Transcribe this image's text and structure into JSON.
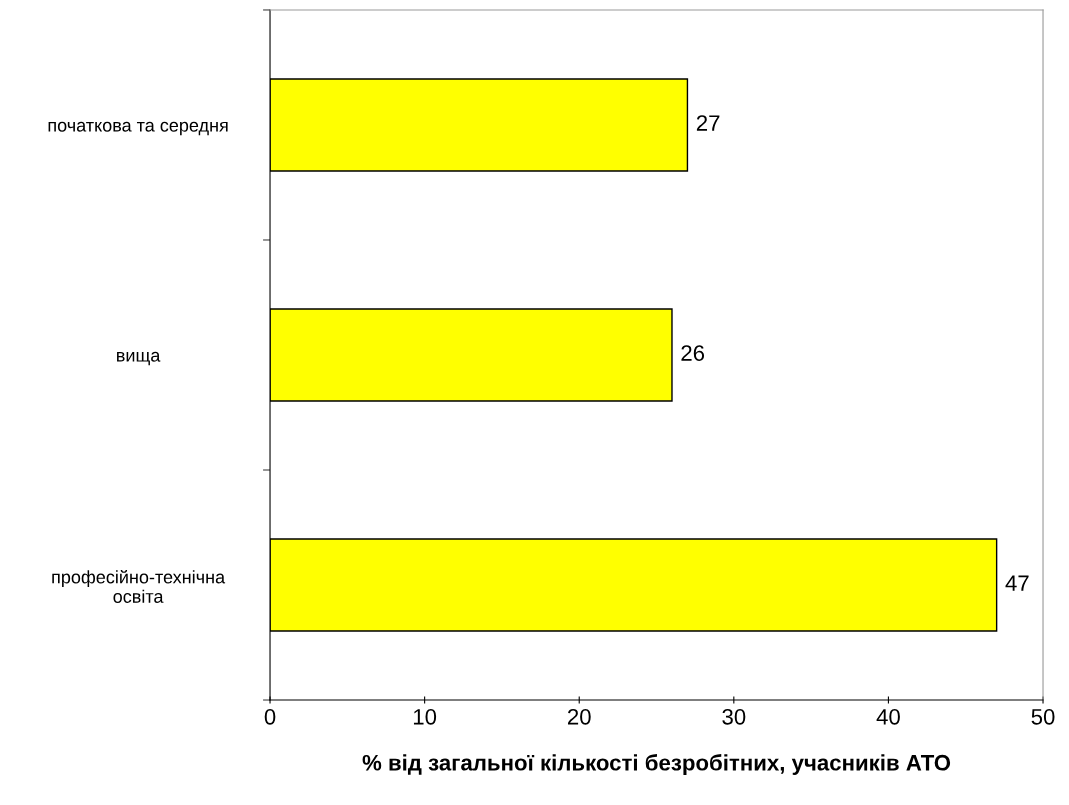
{
  "chart_data": {
    "type": "bar",
    "orientation": "horizontal",
    "xlabel": "% від загальної кількості безробітних, учасників АТО",
    "categories": [
      "початкова та середня",
      "вища",
      "професійно-технічна\nосвіта"
    ],
    "values": [
      27,
      26,
      47
    ],
    "color": "#ffff00",
    "xlim": [
      0,
      50
    ],
    "xticks": [
      0,
      10,
      20,
      30,
      40,
      50
    ],
    "grid": false,
    "data_labels": true
  }
}
